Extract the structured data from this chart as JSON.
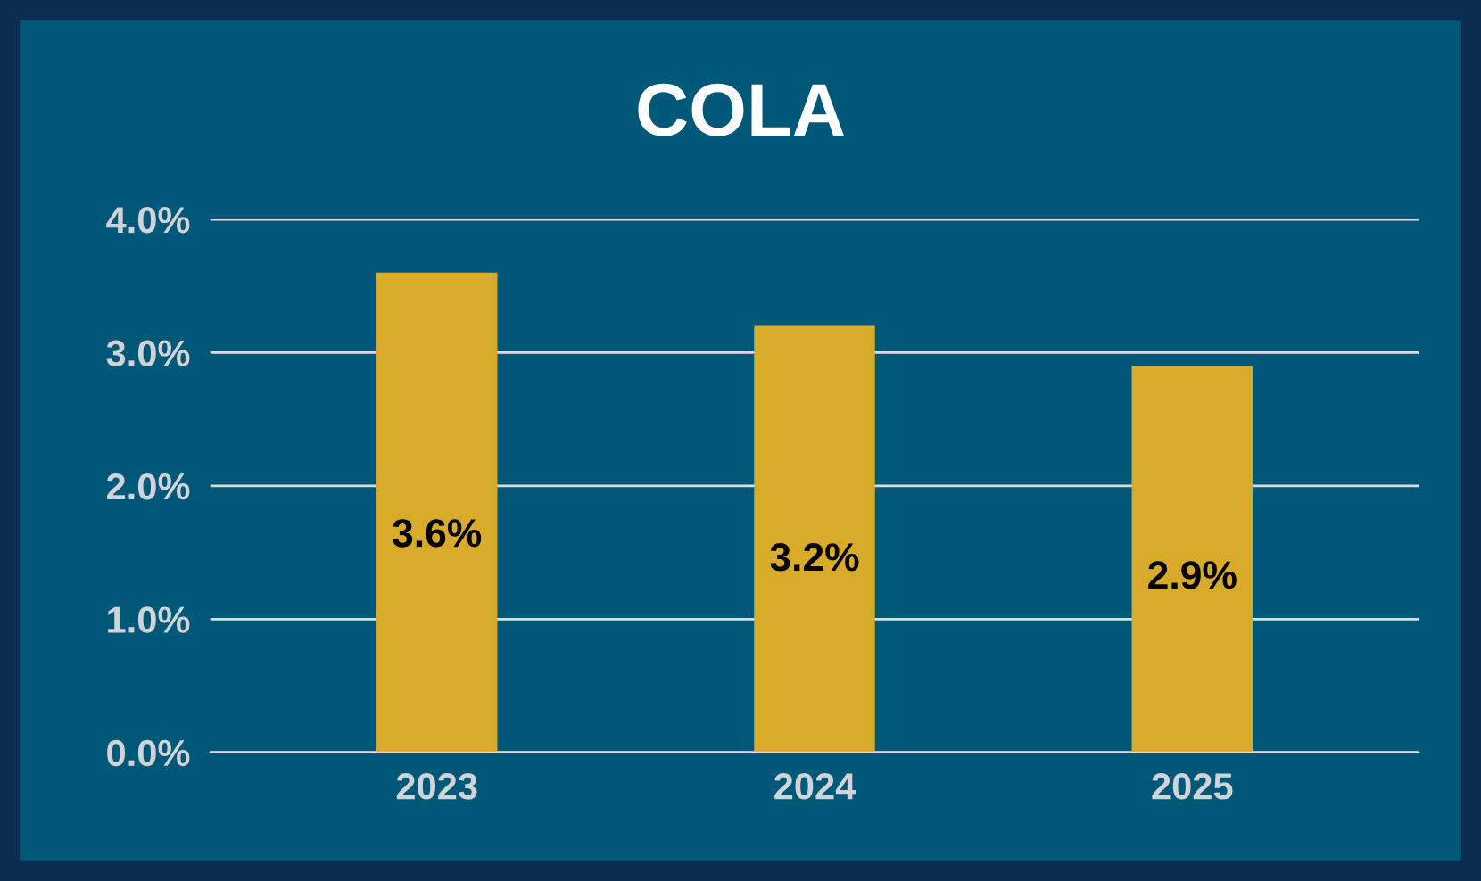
{
  "chart_data": {
    "type": "bar",
    "title": "COLA",
    "categories": [
      "2023",
      "2024",
      "2025"
    ],
    "values": [
      3.6,
      3.2,
      2.9
    ],
    "color": "#d9ab2a",
    "value_labels": [
      "3.6%",
      "3.2%",
      "2.9%"
    ],
    "ylim": [
      0,
      4.0
    ],
    "yticks": [
      {
        "value": 0,
        "label": "0.0%"
      },
      {
        "value": 1,
        "label": "1.0%"
      },
      {
        "value": 2,
        "label": "2.0%"
      },
      {
        "value": 3,
        "label": "3.0%"
      },
      {
        "value": 4,
        "label": "4.0%"
      }
    ],
    "grid": "y"
  }
}
